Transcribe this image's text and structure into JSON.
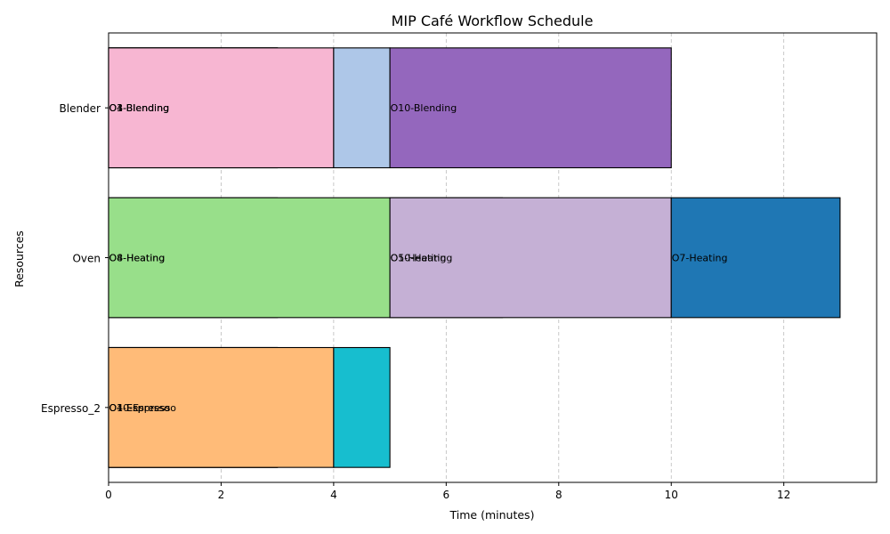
{
  "chart_data": {
    "type": "gantt",
    "title": "MIP Café Workflow Schedule",
    "xlabel": "Time (minutes)",
    "ylabel": "Resources",
    "xlim": [
      0,
      13.65
    ],
    "x_ticks": [
      0,
      2,
      4,
      6,
      8,
      10,
      12
    ],
    "grid": "vertical dashed",
    "resources": [
      "Espresso_2",
      "Oven",
      "Blender"
    ],
    "tasks": [
      {
        "resource": "Blender",
        "label": "O4-Blending",
        "start": 0,
        "end": 3,
        "color": "#bcbd22"
      },
      {
        "resource": "Blender",
        "label": "O3-Blending",
        "start": 0,
        "end": 3,
        "color": "#ff7f0e"
      },
      {
        "resource": "Blender",
        "label": "O1-Blending",
        "start": 0,
        "end": 4,
        "color": "#f7b6d2"
      },
      {
        "resource": "Blender",
        "label": "",
        "start": 4,
        "end": 5,
        "color": "#aec7e8"
      },
      {
        "resource": "Blender",
        "label": "O10-Blending",
        "start": 5,
        "end": 10,
        "color": "#9467bd"
      },
      {
        "resource": "Oven",
        "label": "O4-Heating",
        "start": 0,
        "end": 3,
        "color": "#2ca02c"
      },
      {
        "resource": "Oven",
        "label": "O8-Heating",
        "start": 0,
        "end": 5,
        "color": "#98df8a"
      },
      {
        "resource": "Oven",
        "label": "O5-Heating",
        "start": 5,
        "end": 7,
        "color": "#c5b0d5"
      },
      {
        "resource": "Oven",
        "label": "O10-Heating",
        "start": 5,
        "end": 10,
        "color": "#c5b0d5"
      },
      {
        "resource": "Oven",
        "label": "O7-Heating",
        "start": 10,
        "end": 13,
        "color": "#1f77b4"
      },
      {
        "resource": "Espresso_2",
        "label": "O1-Espresso",
        "start": 0,
        "end": 3,
        "color": "#ffbb78"
      },
      {
        "resource": "Espresso_2",
        "label": "O4-Espresso",
        "start": 0,
        "end": 3,
        "color": "#ffbb78"
      },
      {
        "resource": "Espresso_2",
        "label": "O10-Espresso",
        "start": 0,
        "end": 4,
        "color": "#ffbb78"
      },
      {
        "resource": "Espresso_2",
        "label": "",
        "start": 4,
        "end": 5,
        "color": "#17becf"
      }
    ]
  }
}
